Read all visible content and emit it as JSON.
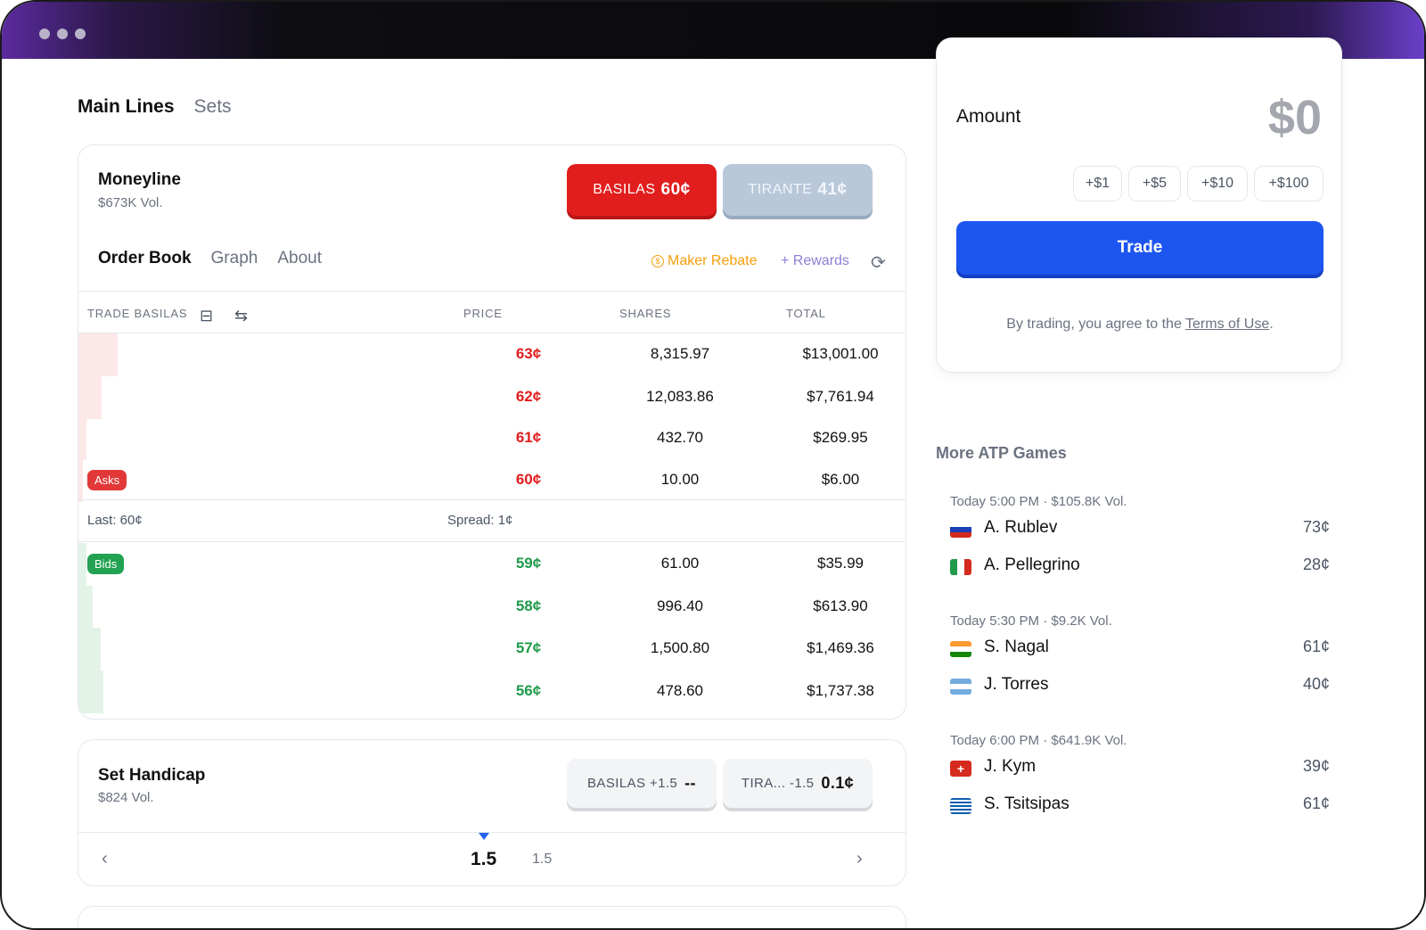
{
  "header": {
    "tabs": [
      {
        "label": "Main Lines",
        "active": true
      },
      {
        "label": "Sets",
        "active": false
      }
    ]
  },
  "moneyline": {
    "title": "Moneyline",
    "volume": "$673K Vol.",
    "buttons": [
      {
        "team": "BASILAS",
        "price": "60¢",
        "color": "#e11d1d"
      },
      {
        "team": "TIRANTE",
        "price": "41¢",
        "color": "#b9c8d9"
      }
    ],
    "subtabs": [
      "Order Book",
      "Graph",
      "About"
    ],
    "maker_rebate": "Maker Rebate",
    "rewards": "+ Rewards",
    "orderbook": {
      "headers": {
        "trade": "TRADE BASILAS",
        "price": "PRICE",
        "shares": "SHARES",
        "total": "TOTAL"
      },
      "asks": [
        {
          "price": "63¢",
          "shares": "8,315.97",
          "total": "$13,001.00",
          "depth": 0.97
        },
        {
          "price": "62¢",
          "shares": "12,083.86",
          "total": "$7,761.94",
          "depth": 0.58
        },
        {
          "price": "61¢",
          "shares": "432.70",
          "total": "$269.95",
          "depth": 0.21
        },
        {
          "price": "60¢",
          "shares": "10.00",
          "total": "$6.00",
          "depth": 0.1
        }
      ],
      "asks_label": "Asks",
      "last": "Last: 60¢",
      "spread": "Spread: 1¢",
      "bids_label": "Bids",
      "bids": [
        {
          "price": "59¢",
          "shares": "61.00",
          "total": "$35.99",
          "depth": 0.2
        },
        {
          "price": "58¢",
          "shares": "996.40",
          "total": "$613.90",
          "depth": 0.36
        },
        {
          "price": "57¢",
          "shares": "1,500.80",
          "total": "$1,469.36",
          "depth": 0.55
        },
        {
          "price": "56¢",
          "shares": "478.60",
          "total": "$1,737.38",
          "depth": 0.63
        }
      ]
    }
  },
  "handicap": {
    "title": "Set Handicap",
    "volume": "$824 Vol.",
    "buttons": [
      {
        "label": "BASILAS +1.5",
        "price": "--"
      },
      {
        "label": "TIRA... -1.5",
        "price": "0.1¢"
      }
    ],
    "selected": "1.5",
    "next": "1.5"
  },
  "trade_panel": {
    "amount_label": "Amount",
    "amount_value": "$0",
    "chips": [
      "+$1",
      "+$5",
      "+$10",
      "+$100"
    ],
    "trade_button": "Trade",
    "terms_prefix": "By trading, you agree to the ",
    "terms_link": "Terms of Use",
    "terms_suffix": "."
  },
  "more_games": {
    "title": "More ATP Games",
    "games": [
      {
        "meta": "Today 5:00 PM  ·  $105.8K Vol.",
        "players": [
          {
            "name": "A. Rublev",
            "price": "73¢",
            "flag": "russia"
          },
          {
            "name": "A. Pellegrino",
            "price": "28¢",
            "flag": "italy"
          }
        ]
      },
      {
        "meta": "Today 5:30 PM  ·  $9.2K Vol.",
        "players": [
          {
            "name": "S. Nagal",
            "price": "61¢",
            "flag": "india"
          },
          {
            "name": "J. Torres",
            "price": "40¢",
            "flag": "argentina"
          }
        ]
      },
      {
        "meta": "Today 6:00 PM  ·  $641.9K Vol.",
        "players": [
          {
            "name": "J. Kym",
            "price": "39¢",
            "flag": "switzerland"
          },
          {
            "name": "S. Tsitsipas",
            "price": "61¢",
            "flag": "greece"
          }
        ]
      }
    ]
  }
}
